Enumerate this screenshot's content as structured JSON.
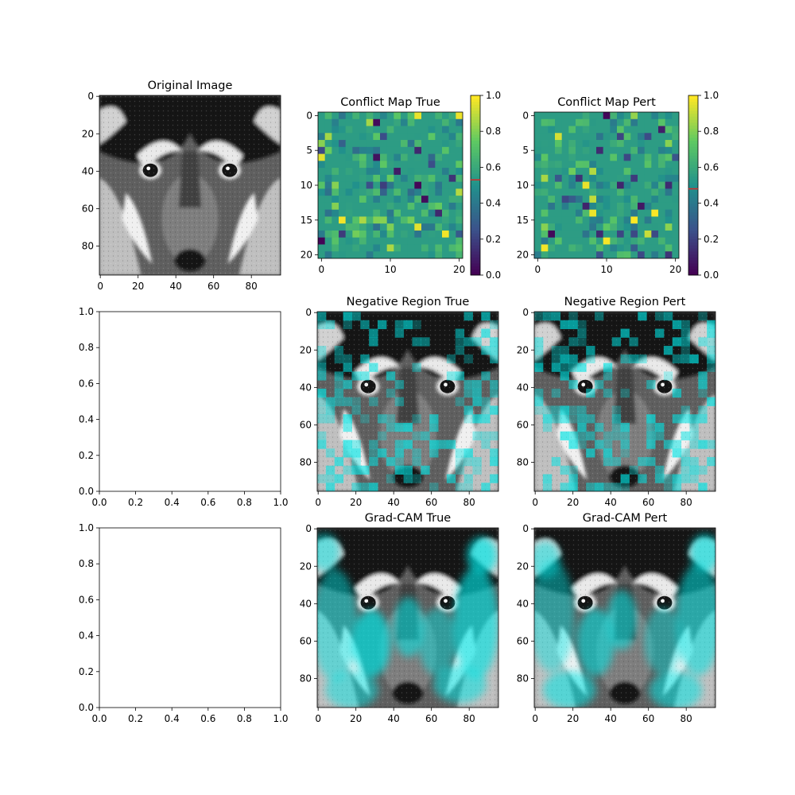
{
  "chart_data": [
    {
      "panel": "top-left",
      "type": "image",
      "title": "Original Image",
      "x_ticks": [
        "0",
        "20",
        "40",
        "60",
        "80"
      ],
      "y_ticks": [
        "0",
        "20",
        "40",
        "60",
        "80"
      ],
      "xlim": [
        -0.5,
        95.5
      ],
      "ylim": [
        95.5,
        -0.5
      ],
      "overlay": "none"
    },
    {
      "panel": "top-middle",
      "type": "heatmap",
      "title": "Conflict Map True",
      "x_ticks": [
        "0",
        "10",
        "20"
      ],
      "y_ticks": [
        "0",
        "5",
        "10",
        "15",
        "20"
      ],
      "xlim": [
        -0.5,
        20.5
      ],
      "ylim": [
        20.5,
        -0.5
      ],
      "grid_size": 21,
      "colormap": "viridis",
      "colorbar": {
        "range": [
          0.0,
          1.0
        ],
        "ticks": [
          "0.0",
          "0.2",
          "0.4",
          "0.6",
          "0.8",
          "1.0"
        ],
        "marker_value": 0.53,
        "marker_color": "#d62728"
      }
    },
    {
      "panel": "top-right",
      "type": "heatmap",
      "title": "Conflict Map Pert",
      "x_ticks": [
        "0",
        "10",
        "20"
      ],
      "y_ticks": [
        "0",
        "5",
        "10",
        "15",
        "20"
      ],
      "xlim": [
        -0.5,
        20.5
      ],
      "ylim": [
        20.5,
        -0.5
      ],
      "grid_size": 21,
      "colormap": "viridis",
      "colorbar": {
        "range": [
          0.0,
          1.0
        ],
        "ticks": [
          "0.0",
          "0.2",
          "0.4",
          "0.6",
          "0.8",
          "1.0"
        ],
        "marker_value": 0.48,
        "marker_color": "#d62728"
      }
    },
    {
      "panel": "middle-left",
      "type": "empty",
      "title": "",
      "x_ticks": [
        "0.0",
        "0.2",
        "0.4",
        "0.6",
        "0.8",
        "1.0"
      ],
      "y_ticks": [
        "0.0",
        "0.2",
        "0.4",
        "0.6",
        "0.8",
        "1.0"
      ],
      "xlim": [
        0,
        1
      ],
      "ylim": [
        0,
        1
      ]
    },
    {
      "panel": "middle-middle",
      "type": "image",
      "title": "Negative Region True",
      "x_ticks": [
        "0",
        "20",
        "40",
        "60",
        "80"
      ],
      "y_ticks": [
        "0",
        "20",
        "40",
        "60",
        "80"
      ],
      "xlim": [
        -0.5,
        95.5
      ],
      "ylim": [
        95.5,
        -0.5
      ],
      "overlay": "cyan-blocks"
    },
    {
      "panel": "middle-right",
      "type": "image",
      "title": "Negative Region Pert",
      "x_ticks": [
        "0",
        "20",
        "40",
        "60",
        "80"
      ],
      "y_ticks": [
        "0",
        "20",
        "40",
        "60",
        "80"
      ],
      "xlim": [
        -0.5,
        95.5
      ],
      "ylim": [
        95.5,
        -0.5
      ],
      "overlay": "cyan-blocks"
    },
    {
      "panel": "bottom-left",
      "type": "empty",
      "title": "",
      "x_ticks": [
        "0.0",
        "0.2",
        "0.4",
        "0.6",
        "0.8",
        "1.0"
      ],
      "y_ticks": [
        "0.0",
        "0.2",
        "0.4",
        "0.6",
        "0.8",
        "1.0"
      ],
      "xlim": [
        0,
        1
      ],
      "ylim": [
        0,
        1
      ]
    },
    {
      "panel": "bottom-middle",
      "type": "image",
      "title": "Grad-CAM True",
      "x_ticks": [
        "0",
        "20",
        "40",
        "60",
        "80"
      ],
      "y_ticks": [
        "0",
        "20",
        "40",
        "60",
        "80"
      ],
      "xlim": [
        -0.5,
        95.5
      ],
      "ylim": [
        95.5,
        -0.5
      ],
      "overlay": "cyan-smooth"
    },
    {
      "panel": "bottom-right",
      "type": "image",
      "title": "Grad-CAM Pert",
      "x_ticks": [
        "0",
        "20",
        "40",
        "60",
        "80"
      ],
      "y_ticks": [
        "0",
        "20",
        "40",
        "60",
        "80"
      ],
      "xlim": [
        -0.5,
        95.5
      ],
      "ylim": [
        95.5,
        -0.5
      ],
      "overlay": "cyan-smooth"
    }
  ],
  "colors": {
    "overlay": "#00e5e5",
    "axis": "#000000",
    "colorbar_marker": "#d62728"
  }
}
